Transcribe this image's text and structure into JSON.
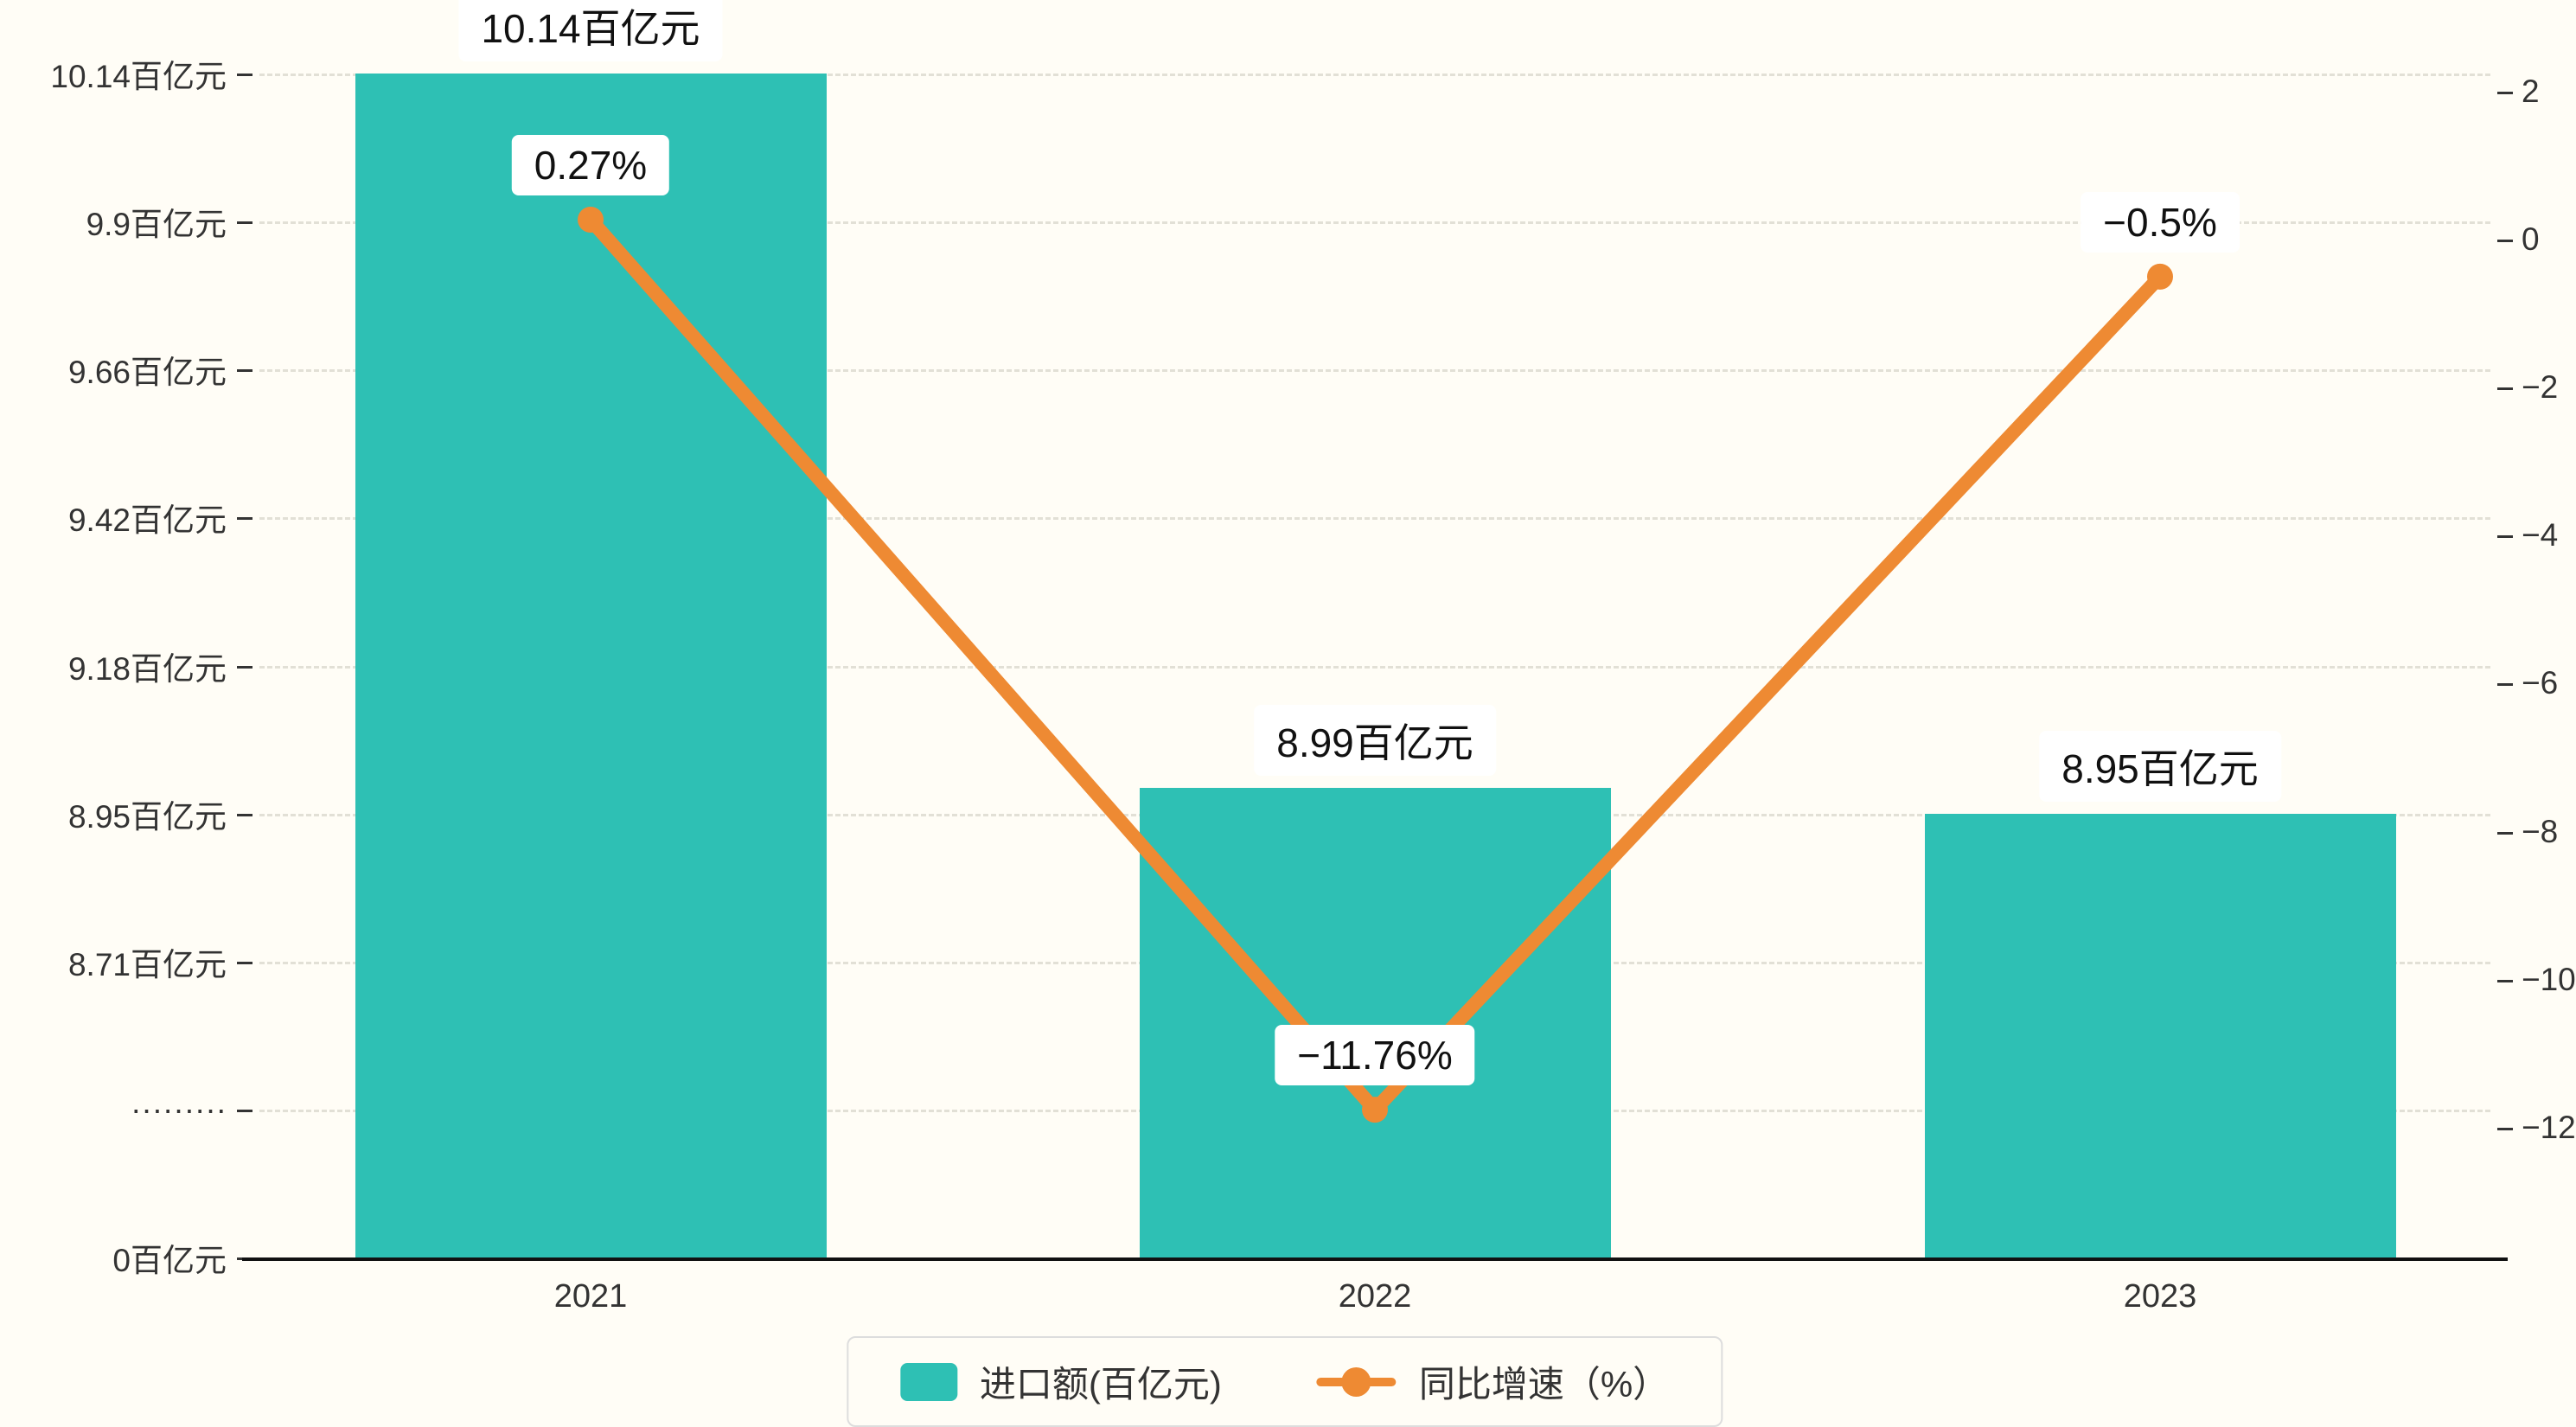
{
  "colors": {
    "bar": "#2ec0b4",
    "line": "#ee8a33",
    "background": "#fffdf6",
    "grid": "#e2e0d6",
    "axis": "#111111",
    "text": "#333333"
  },
  "chart_data": {
    "type": "bar+line",
    "categories": [
      "2021",
      "2022",
      "2023"
    ],
    "series": [
      {
        "name": "进口额(百亿元)",
        "type": "bar",
        "values": [
          10.14,
          8.99,
          8.95
        ],
        "labels": [
          "10.14百亿元",
          "8.99百亿元",
          "8.95百亿元"
        ],
        "color": "#2ec0b4"
      },
      {
        "name": "同比增速（%）",
        "type": "line",
        "values": [
          0.27,
          -11.76,
          -0.5
        ],
        "labels": [
          "0.27%",
          "−11.76%",
          "−0.5%"
        ],
        "color": "#ee8a33"
      }
    ],
    "left_axis": {
      "tick_labels": [
        "10.14百亿元",
        "9.9百亿元",
        "9.66百亿元",
        "9.42百亿元",
        "9.18百亿元",
        "8.95百亿元",
        "8.71百亿元",
        "·········",
        "0百亿元"
      ],
      "tick_values": [
        10.14,
        9.9,
        9.66,
        9.42,
        9.18,
        8.95,
        8.71,
        null,
        0
      ],
      "broken_axis": true
    },
    "right_axis": {
      "tick_labels": [
        "2",
        "0",
        "−2",
        "−4",
        "−6",
        "−8",
        "−10",
        "−12"
      ],
      "max": 2,
      "min": -12,
      "step": 2
    },
    "legend": [
      {
        "label": "进口额(百亿元)",
        "type": "bar",
        "color": "#2ec0b4"
      },
      {
        "label": "同比增速（%）",
        "type": "line",
        "color": "#ee8a33"
      }
    ],
    "grid": "dashed-horizontal",
    "legend_position": "bottom-center"
  }
}
